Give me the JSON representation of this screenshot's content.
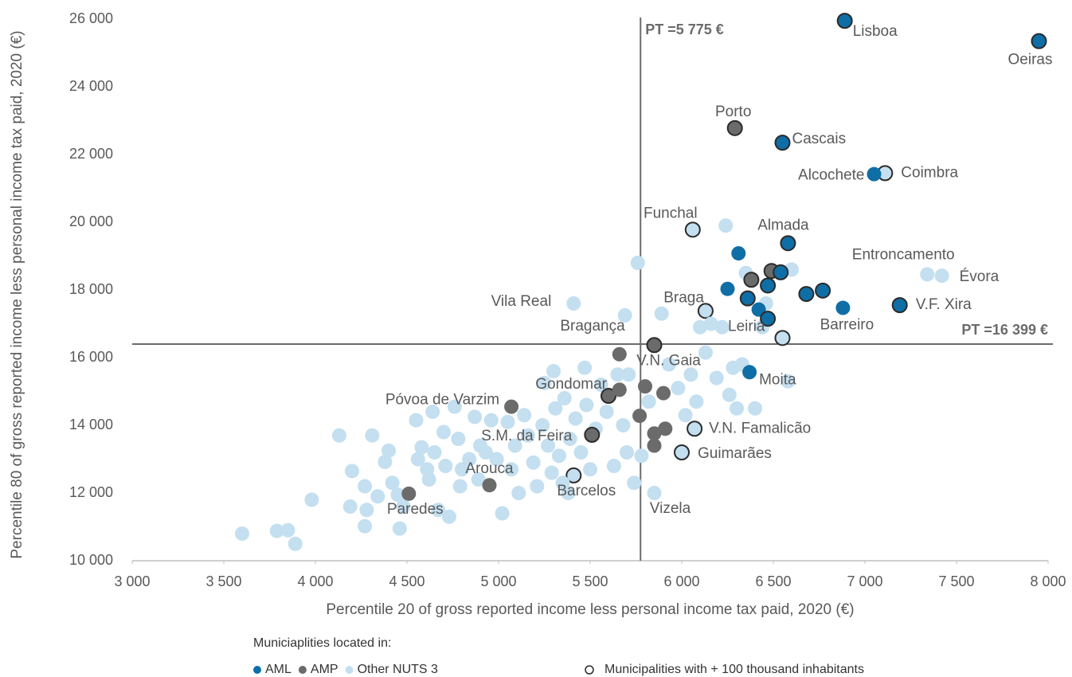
{
  "chart_data": {
    "type": "scatter",
    "x_label": "Percentile 20 of gross reported income less personal income tax paid, 2020 (€)",
    "y_label": "Percentile 80 of gross reported income less personal income tax paid, 2020 (€)",
    "legend_title": "Municiaplities located in:",
    "outline_legend": "Municipalities with + 100 thousand inhabitants",
    "outline_color": "#2b2b2b",
    "xlim": [
      3000,
      8000
    ],
    "xticks": [
      {
        "value": 3000,
        "label": "3 000"
      },
      {
        "value": 3500,
        "label": "3 500"
      },
      {
        "value": 4000,
        "label": "4 000"
      },
      {
        "value": 4500,
        "label": "4 500"
      },
      {
        "value": 5000,
        "label": "5 000"
      },
      {
        "value": 5500,
        "label": "5 500"
      },
      {
        "value": 6000,
        "label": "6 000"
      },
      {
        "value": 6500,
        "label": "6 500"
      },
      {
        "value": 7000,
        "label": "7 000"
      },
      {
        "value": 7500,
        "label": "7 500"
      },
      {
        "value": 8000,
        "label": "8 000"
      }
    ],
    "ylim": [
      10000,
      26000
    ],
    "yticks": [
      {
        "value": 10000,
        "label": "10 000"
      },
      {
        "value": 12000,
        "label": "12 000"
      },
      {
        "value": 14000,
        "label": "14 000"
      },
      {
        "value": 16000,
        "label": "16 000"
      },
      {
        "value": 18000,
        "label": "18 000"
      },
      {
        "value": 20000,
        "label": "20 000"
      },
      {
        "value": 22000,
        "label": "22 000"
      },
      {
        "value": 24000,
        "label": "24 000"
      },
      {
        "value": 26000,
        "label": "26 000"
      }
    ],
    "ref_lines": [
      {
        "axis": "x",
        "value": 5775,
        "label": "PT =5 775 €"
      },
      {
        "axis": "y",
        "value": 16399,
        "label": "PT =16 399 €"
      }
    ],
    "series": [
      {
        "name": "Other NUTS 3",
        "color": "#c3dff0",
        "x": [
          7110,
          6060,
          6130,
          6550,
          6070,
          6000,
          5410,
          5410,
          5690,
          5850,
          7340,
          7420,
          3600,
          3790,
          3850,
          3890,
          3980,
          4130,
          4200,
          4190,
          4310,
          4270,
          4280,
          4270,
          4340,
          4380,
          4400,
          4420,
          4450,
          4480,
          4460,
          4550,
          4560,
          4580,
          4610,
          4620,
          4640,
          4650,
          4670,
          4700,
          4710,
          4730,
          4760,
          4780,
          4790,
          4800,
          4840,
          4870,
          4890,
          4900,
          4930,
          4960,
          4990,
          5020,
          5050,
          5070,
          5090,
          5110,
          5140,
          5160,
          5190,
          5210,
          5240,
          5250,
          5270,
          5290,
          5300,
          5310,
          5330,
          5350,
          5360,
          5390,
          5380,
          5420,
          5450,
          5470,
          5480,
          5500,
          5530,
          5560,
          5590,
          5630,
          5650,
          5680,
          5700,
          5710,
          5740,
          5780,
          5760,
          5820,
          5890,
          5930,
          5980,
          6020,
          6050,
          6080,
          6100,
          6130,
          6160,
          6190,
          6220,
          6240,
          6260,
          6280,
          6300,
          6330,
          6350,
          6400,
          6440,
          6460,
          6580,
          6600
        ],
        "y": [
          21450,
          19780,
          17380,
          16580,
          13900,
          13200,
          12520,
          17600,
          17250,
          12000,
          18460,
          18420,
          10800,
          10880,
          10900,
          10500,
          11800,
          13700,
          12650,
          11600,
          13700,
          12200,
          11500,
          11020,
          11900,
          12920,
          13250,
          12300,
          11950,
          11600,
          10950,
          14150,
          13000,
          13350,
          12700,
          12400,
          14400,
          13200,
          11500,
          13800,
          12800,
          11300,
          14550,
          13600,
          12200,
          12700,
          13000,
          14250,
          12400,
          13400,
          13200,
          14150,
          13000,
          11400,
          14100,
          12700,
          13400,
          12000,
          14300,
          13700,
          12900,
          12200,
          14000,
          15250,
          13400,
          12600,
          15600,
          14500,
          13100,
          12300,
          14800,
          13600,
          12000,
          14200,
          13200,
          15700,
          14600,
          12700,
          13900,
          15200,
          14400,
          12800,
          15500,
          14000,
          13200,
          15500,
          12300,
          13100,
          18800,
          14700,
          17300,
          15800,
          15100,
          14300,
          15500,
          14700,
          16900,
          16150,
          17000,
          15400,
          16900,
          19900,
          14900,
          15700,
          14500,
          15800,
          18500,
          14500,
          16900,
          17600,
          15300,
          18600
        ],
        "labels": [
          "Coimbra",
          "Funchal",
          "Braga",
          "Leiria",
          "V.N. Famalicão",
          "Guimarães",
          "Barcelos",
          "Vila Real",
          "Bragança",
          "Vizela",
          "Entroncamento",
          "Évora",
          null,
          null,
          null,
          null,
          null,
          null,
          null,
          null,
          null,
          null,
          null,
          null,
          null,
          null,
          null,
          null,
          null,
          null,
          null,
          null,
          null,
          null,
          null,
          null,
          null,
          null,
          null,
          null,
          null,
          null,
          null,
          null,
          null,
          null,
          null,
          null,
          null,
          null,
          null,
          null,
          null,
          null,
          null,
          null,
          null,
          null,
          null,
          null,
          null,
          null,
          null,
          null,
          null,
          null,
          null,
          null,
          null,
          null,
          null,
          null,
          null,
          null,
          null,
          null,
          null,
          null,
          null,
          null,
          null,
          null,
          null,
          null,
          null,
          null,
          null,
          null,
          null,
          null,
          null,
          null,
          null,
          null,
          null,
          null,
          null,
          null,
          null,
          null,
          null,
          null,
          null,
          null,
          null,
          null,
          null,
          null,
          null,
          null,
          null,
          null
        ],
        "large": [
          true,
          true,
          true,
          true,
          true,
          true,
          true,
          false,
          false,
          false,
          false,
          false,
          false,
          false,
          false,
          false,
          false,
          false,
          false,
          false,
          false,
          false,
          false,
          false,
          false,
          false,
          false,
          false,
          false,
          false,
          false,
          false,
          false,
          false,
          false,
          false,
          false,
          false,
          false,
          false,
          false,
          false,
          false,
          false,
          false,
          false,
          false,
          false,
          false,
          false,
          false,
          false,
          false,
          false,
          false,
          false,
          false,
          false,
          false,
          false,
          false,
          false,
          false,
          false,
          false,
          false,
          false,
          false,
          false,
          false,
          false,
          false,
          false,
          false,
          false,
          false,
          false,
          false,
          false,
          false,
          false,
          false,
          false,
          false,
          false,
          false,
          false,
          false,
          false,
          false,
          false,
          false,
          false,
          false,
          false,
          false,
          false,
          false,
          false,
          false,
          false,
          false,
          false,
          false,
          false,
          false,
          false,
          false,
          false,
          false,
          false,
          false
        ]
      },
      {
        "name": "AMP",
        "color": "#6b6b6b",
        "x": [
          6290,
          5850,
          5070,
          5600,
          5510,
          4950,
          4510,
          6490,
          6380,
          5660,
          5660,
          5800,
          5900,
          5770,
          5850,
          5910,
          5850
        ],
        "y": [
          22780,
          16370,
          14550,
          14870,
          13720,
          12230,
          11980,
          18560,
          18300,
          16100,
          15050,
          15150,
          14950,
          14280,
          13760,
          13900,
          13400
        ],
        "labels": [
          "Porto",
          "V.N. Gaia",
          "Póvoa de Varzim",
          "Gondomar",
          "S.M. da Feira",
          "Arouca",
          "Paredes",
          null,
          null,
          null,
          null,
          null,
          null,
          null,
          null,
          null,
          null
        ],
        "large": [
          true,
          true,
          false,
          true,
          true,
          false,
          false,
          true,
          true,
          false,
          false,
          false,
          false,
          false,
          false,
          false,
          false
        ]
      },
      {
        "name": "AML",
        "color": "#0f6ea6",
        "x": [
          6890,
          7950,
          6550,
          7050,
          6580,
          6880,
          7190,
          6370,
          6310,
          6250,
          6360,
          6540,
          6470,
          6680,
          6770,
          6420,
          6470
        ],
        "y": [
          25950,
          25350,
          22350,
          21420,
          19380,
          17470,
          17550,
          15570,
          19080,
          18030,
          17750,
          18520,
          18130,
          17880,
          17980,
          17420,
          17150
        ],
        "labels": [
          "Lisboa",
          "Oeiras",
          "Cascais",
          "Alcochete",
          "Almada",
          "Barreiro",
          "V.F. Xira",
          "Moita",
          null,
          null,
          null,
          null,
          null,
          null,
          null,
          null,
          null
        ],
        "large": [
          true,
          true,
          true,
          false,
          true,
          false,
          true,
          false,
          false,
          false,
          true,
          true,
          true,
          true,
          true,
          false,
          true
        ]
      }
    ],
    "legend_order": [
      2,
      1,
      0
    ]
  }
}
